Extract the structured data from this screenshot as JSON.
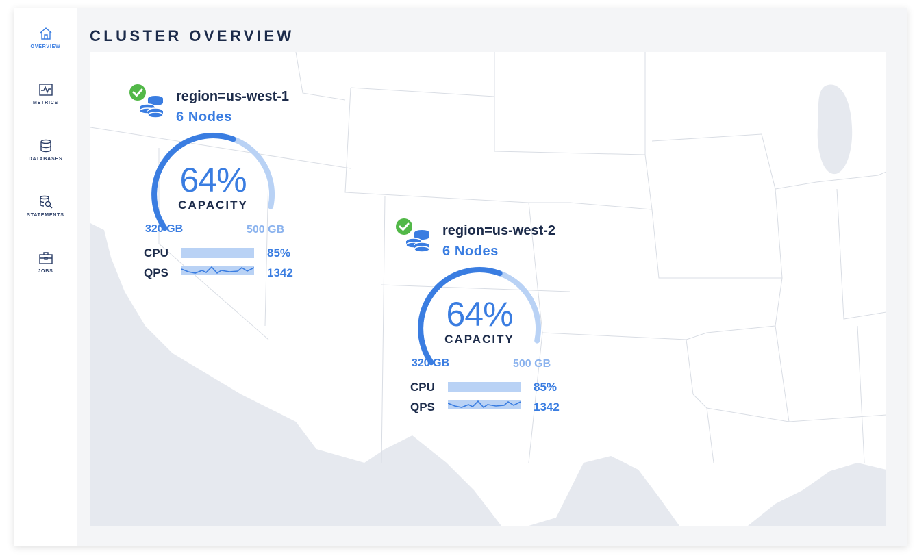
{
  "page": {
    "title": "CLUSTER OVERVIEW"
  },
  "nav": {
    "overview": "OVERVIEW",
    "metrics": "METRICS",
    "databases": "DATABASES",
    "statements": "STATEMENTS",
    "jobs": "JOBS"
  },
  "colors": {
    "accent": "#3a7de1",
    "accent_light": "#b9d2f5",
    "status_ok": "#52b848",
    "map_land": "#ffffff",
    "map_water": "#e6e9ef"
  },
  "regions": [
    {
      "name": "region=us-west-1",
      "nodes": "6 Nodes",
      "status_icon": "check-circle-icon",
      "capacity_pct": "64%",
      "capacity_fraction": 0.64,
      "capacity_label": "CAPACITY",
      "used": "320 GB",
      "total": "500 GB",
      "cpu_label": "CPU",
      "cpu_value": "85%",
      "cpu_fraction": 0.85,
      "qps_label": "QPS",
      "qps_value": "1342"
    },
    {
      "name": "region=us-west-2",
      "nodes": "6 Nodes",
      "status_icon": "check-circle-icon",
      "capacity_pct": "64%",
      "capacity_fraction": 0.64,
      "capacity_label": "CAPACITY",
      "used": "320 GB",
      "total": "500 GB",
      "cpu_label": "CPU",
      "cpu_value": "85%",
      "cpu_fraction": 0.85,
      "qps_label": "QPS",
      "qps_value": "1342"
    }
  ]
}
